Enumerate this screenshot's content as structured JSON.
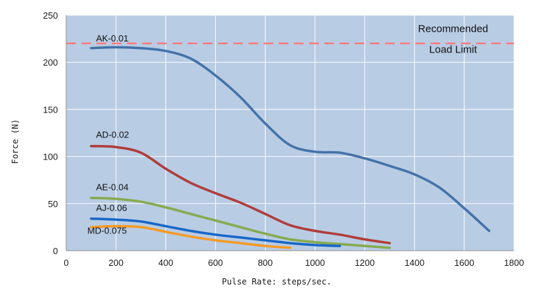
{
  "chart_data": {
    "type": "line",
    "title": "",
    "xlabel": "Pulse Rate: steps/sec.",
    "ylabel": "Force (N)",
    "xlim": [
      0,
      1800
    ],
    "ylim": [
      0,
      250
    ],
    "xticks": [
      "0",
      "200",
      "400",
      "600",
      "800",
      "1000",
      "1200",
      "1400",
      "1600",
      "1800"
    ],
    "yticks": [
      "0",
      "50",
      "100",
      "150",
      "200",
      "250"
    ],
    "grid": true,
    "plot_background": "#b8cce4",
    "reference_line": {
      "value": 220,
      "label_line1": "Recommended",
      "label_line2": "Load Limit",
      "color": "#ff7b7b",
      "style": "dashed"
    },
    "series": [
      {
        "name": "AK-0.01",
        "color": "#4472a8",
        "x": [
          100,
          200,
          300,
          400,
          500,
          600,
          700,
          800,
          900,
          1000,
          1100,
          1200,
          1300,
          1400,
          1500,
          1600,
          1700
        ],
        "y": [
          215,
          216,
          215,
          212,
          204,
          186,
          163,
          135,
          112,
          105,
          104,
          98,
          90,
          81,
          67,
          45,
          21
        ]
      },
      {
        "name": "AD-0.02",
        "color": "#b03c3a",
        "x": [
          100,
          200,
          300,
          400,
          500,
          600,
          700,
          800,
          900,
          1000,
          1100,
          1200,
          1300
        ],
        "y": [
          111,
          110,
          104,
          87,
          72,
          61,
          51,
          39,
          27,
          21,
          17,
          12,
          8
        ]
      },
      {
        "name": "AE-0.04",
        "color": "#86aa4e",
        "x": [
          100,
          200,
          300,
          400,
          500,
          600,
          700,
          800,
          900,
          1000,
          1100,
          1200,
          1300
        ],
        "y": [
          56,
          55,
          52,
          46,
          39,
          32,
          25,
          18,
          12,
          9,
          7,
          5,
          3
        ]
      },
      {
        "name": "AJ-0.06",
        "color": "#1766c8",
        "x": [
          100,
          200,
          300,
          400,
          500,
          600,
          700,
          800,
          900,
          1000,
          1100
        ],
        "y": [
          34,
          33,
          31,
          26,
          21,
          17,
          14,
          11,
          8,
          6,
          5
        ]
      },
      {
        "name": "MD-0.075",
        "color": "#f59a27",
        "x": [
          100,
          200,
          300,
          400,
          500,
          600,
          700,
          800,
          900
        ],
        "y": [
          25,
          26,
          25,
          20,
          15,
          11,
          8,
          5,
          3
        ]
      }
    ]
  }
}
